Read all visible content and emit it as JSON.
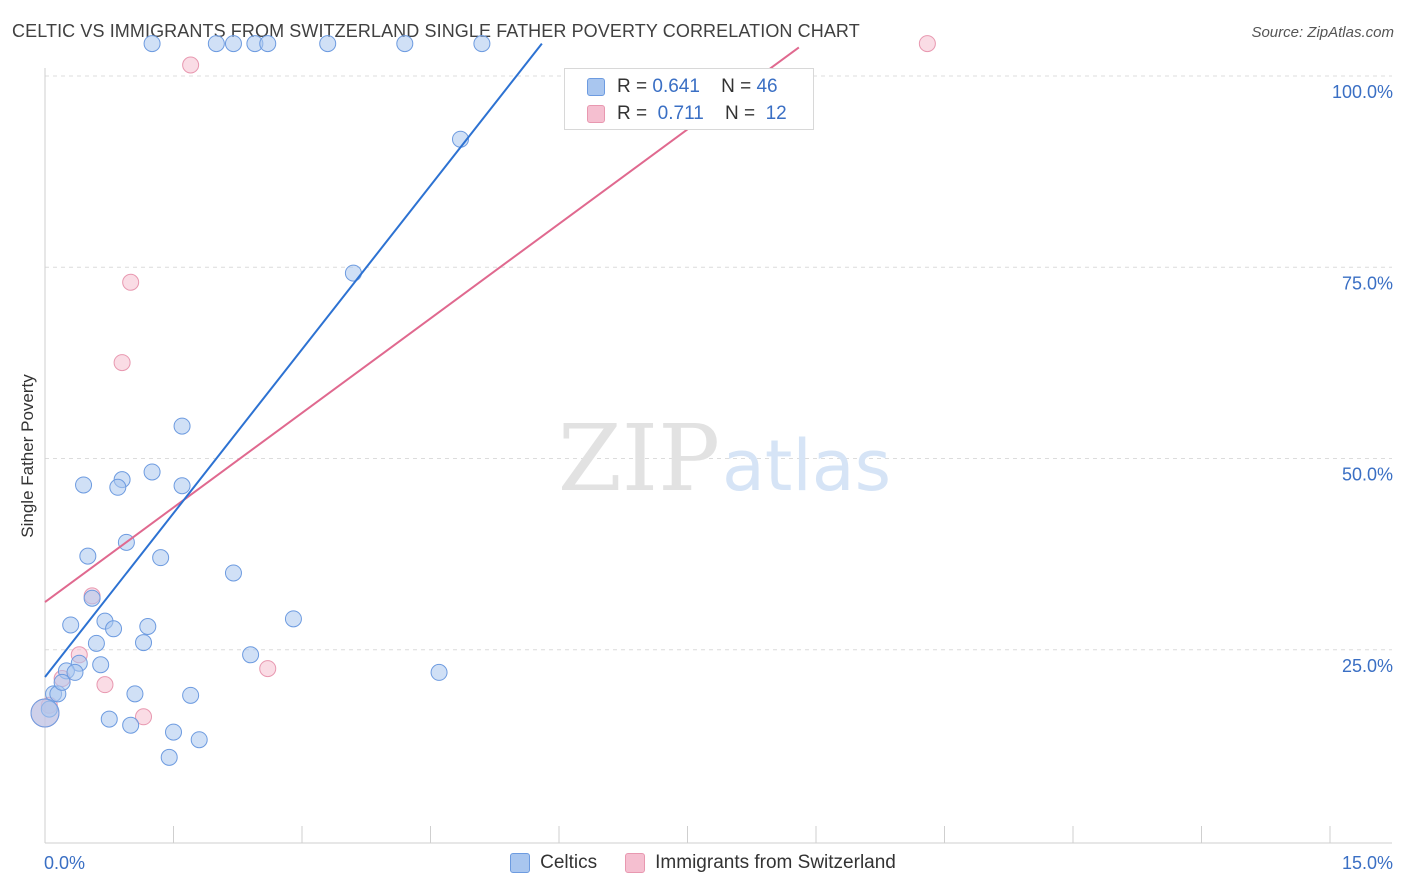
{
  "colors": {
    "blue_fill": "#a9c6ef",
    "blue_edge": "#6d9be0",
    "blue_line": "#2d72d2",
    "pink_fill": "#f5bfd0",
    "pink_edge": "#e898b0",
    "pink_line": "#e0698f",
    "tick_text": "#3a6fc4",
    "grid": "#dcdcdc"
  },
  "header": {
    "title": "CELTIC VS IMMIGRANTS FROM SWITZERLAND SINGLE FATHER POVERTY CORRELATION CHART",
    "source": "Source: ZipAtlas.com"
  },
  "legend": {
    "celtics": {
      "r_label": "R =",
      "r_value": "0.641",
      "n_label": "N =",
      "n_value": "46"
    },
    "swiss": {
      "r_label": "R =",
      "r_value": "0.711",
      "n_label": "N =",
      "n_value": "12"
    }
  },
  "watermark": {
    "zip": "ZIP",
    "atlas": "atlas"
  },
  "chart_data": {
    "type": "scatter",
    "title": "CELTIC VS IMMIGRANTS FROM SWITZERLAND SINGLE FATHER POVERTY CORRELATION CHART",
    "xlabel": "",
    "ylabel": "Single Father Poverty",
    "xlim": [
      0,
      15
    ],
    "ylim": [
      0,
      100
    ],
    "x_tick_labels": [
      "0.0%",
      "15.0%"
    ],
    "y_ticks": [
      25,
      50,
      75,
      100
    ],
    "y_tick_labels": [
      "25.0%",
      "50.0%",
      "75.0%",
      "100.0%"
    ],
    "legend_position": "bottom-center",
    "series": [
      {
        "name": "Celtics",
        "color": "#a9c6ef",
        "trend": {
          "x": [
            0.0,
            5.8
          ],
          "y": [
            21.7,
            104.5
          ]
        },
        "points": [
          {
            "x": 1.25,
            "y": 104.5
          },
          {
            "x": 2.0,
            "y": 104.5
          },
          {
            "x": 2.2,
            "y": 104.5
          },
          {
            "x": 2.45,
            "y": 104.5
          },
          {
            "x": 2.6,
            "y": 104.5
          },
          {
            "x": 3.3,
            "y": 104.5
          },
          {
            "x": 4.2,
            "y": 104.5
          },
          {
            "x": 5.1,
            "y": 104.5
          },
          {
            "x": 4.85,
            "y": 92.0
          },
          {
            "x": 3.6,
            "y": 74.5
          },
          {
            "x": 1.6,
            "y": 54.5
          },
          {
            "x": 1.25,
            "y": 48.5
          },
          {
            "x": 0.9,
            "y": 47.5
          },
          {
            "x": 0.85,
            "y": 46.5
          },
          {
            "x": 0.45,
            "y": 46.8
          },
          {
            "x": 1.6,
            "y": 46.7
          },
          {
            "x": 0.95,
            "y": 39.3
          },
          {
            "x": 0.5,
            "y": 37.5
          },
          {
            "x": 1.35,
            "y": 37.3
          },
          {
            "x": 2.2,
            "y": 35.3
          },
          {
            "x": 0.55,
            "y": 32.0
          },
          {
            "x": 2.9,
            "y": 29.3
          },
          {
            "x": 0.3,
            "y": 28.5
          },
          {
            "x": 0.7,
            "y": 29.0
          },
          {
            "x": 0.8,
            "y": 28.0
          },
          {
            "x": 1.2,
            "y": 28.3
          },
          {
            "x": 0.6,
            "y": 26.1
          },
          {
            "x": 1.15,
            "y": 26.2
          },
          {
            "x": 0.4,
            "y": 23.5
          },
          {
            "x": 0.65,
            "y": 23.3
          },
          {
            "x": 0.25,
            "y": 22.5
          },
          {
            "x": 0.35,
            "y": 22.3
          },
          {
            "x": 2.4,
            "y": 24.6
          },
          {
            "x": 4.6,
            "y": 22.3
          },
          {
            "x": 0.1,
            "y": 19.5
          },
          {
            "x": 0.15,
            "y": 19.5
          },
          {
            "x": 1.05,
            "y": 19.5
          },
          {
            "x": 1.7,
            "y": 19.3
          },
          {
            "x": 0.75,
            "y": 16.2
          },
          {
            "x": 1.0,
            "y": 15.4
          },
          {
            "x": 1.5,
            "y": 14.5
          },
          {
            "x": 1.8,
            "y": 13.5
          },
          {
            "x": 1.45,
            "y": 11.2
          },
          {
            "x": 0.05,
            "y": 17.5
          },
          {
            "x": 0.2,
            "y": 21.0
          },
          {
            "x": 0.0,
            "y": 17.0
          }
        ]
      },
      {
        "name": "Immigrants from Switzerland",
        "color": "#f5bfd0",
        "trend": {
          "x": [
            0.0,
            8.8
          ],
          "y": [
            31.5,
            104.0
          ]
        },
        "points": [
          {
            "x": 10.3,
            "y": 104.5
          },
          {
            "x": 1.7,
            "y": 101.7
          },
          {
            "x": 1.0,
            "y": 73.3
          },
          {
            "x": 0.9,
            "y": 62.8
          },
          {
            "x": 0.55,
            "y": 32.3
          },
          {
            "x": 0.4,
            "y": 24.6
          },
          {
            "x": 2.6,
            "y": 22.8
          },
          {
            "x": 0.7,
            "y": 20.7
          },
          {
            "x": 1.15,
            "y": 16.5
          },
          {
            "x": 0.2,
            "y": 21.5
          },
          {
            "x": 0.05,
            "y": 18.0
          },
          {
            "x": 0.0,
            "y": 17.0
          }
        ]
      }
    ]
  }
}
